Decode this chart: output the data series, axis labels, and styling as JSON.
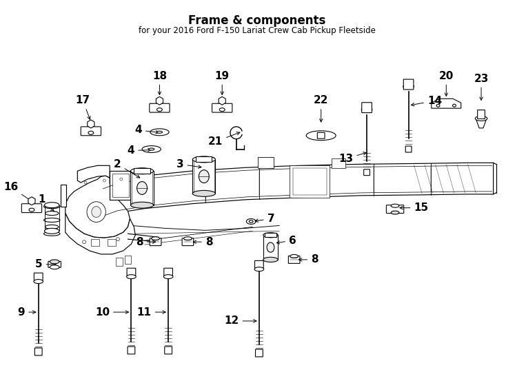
{
  "title": "Frame & components",
  "subtitle": "for your 2016 Ford F-150 Lariat Crew Cab Pickup Fleetside",
  "background_color": "#ffffff",
  "line_color": "#000000",
  "label_fontsize": 11,
  "fig_width": 7.34,
  "fig_height": 5.4,
  "dpi": 100,
  "frame_color": "#000000"
}
